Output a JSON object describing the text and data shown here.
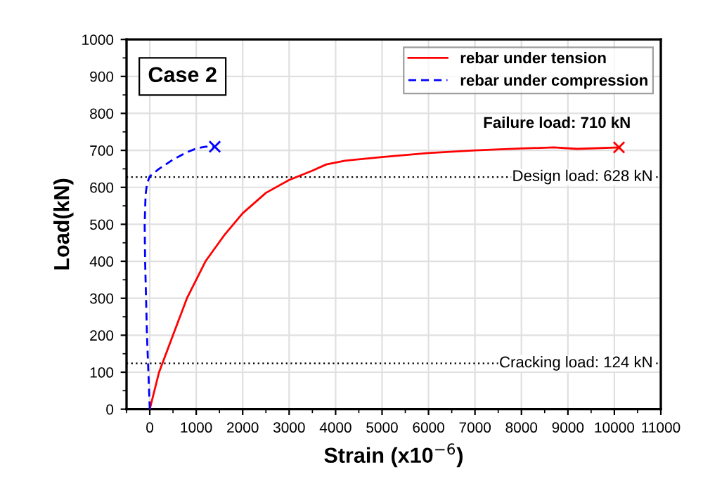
{
  "chart_data": {
    "type": "line",
    "xlabel": "Strain (x10$^{−6}$)",
    "ylabel": "Load(kN)",
    "xlim": [
      -500,
      11000
    ],
    "xticks": [
      0,
      1000,
      2000,
      3000,
      4000,
      5000,
      6000,
      7000,
      8000,
      9000,
      10000,
      11000
    ],
    "ylim": [
      0,
      1000
    ],
    "yticks": [
      0,
      100,
      200,
      300,
      400,
      500,
      600,
      700,
      800,
      900,
      1000
    ],
    "grid": true,
    "legend": "top right",
    "series": [
      {
        "name": "rebar under tension",
        "color": "#ff0000",
        "line_style": "solid",
        "marker": "none",
        "x": [
          0,
          200,
          500,
          800,
          1200,
          1600,
          2000,
          2500,
          3000,
          3500,
          3800,
          4200,
          5000,
          6000,
          7000,
          8000,
          8700,
          9200,
          10100
        ],
        "values": [
          0,
          100,
          200,
          300,
          400,
          470,
          530,
          585,
          620,
          645,
          662,
          672,
          682,
          693,
          700,
          705,
          708,
          704,
          708
        ]
      },
      {
        "name": "rebar under compression",
        "color": "#0000ff",
        "line_style": "dashed",
        "marker": "none",
        "x": [
          0,
          -30,
          -60,
          -80,
          -100,
          -110,
          -90,
          -60,
          0,
          200,
          500,
          800,
          1000,
          1200,
          1400
        ],
        "values": [
          0,
          100,
          200,
          300,
          400,
          500,
          580,
          610,
          630,
          650,
          675,
          695,
          705,
          710,
          710
        ]
      },
      {
        "type": "scatter",
        "color": "#ff0000",
        "marker": "cross",
        "x": [
          10100
        ],
        "values": [
          708
        ]
      },
      {
        "type": "scatter",
        "color": "#0000ff",
        "marker": "cross",
        "x": [
          1400
        ],
        "values": [
          710
        ]
      }
    ],
    "ref_lines": [
      {
        "axis": "y",
        "value": 628,
        "label": "Design load: 628 kN",
        "color": "#000000",
        "line_style": "dotted"
      },
      {
        "axis": "y",
        "value": 124,
        "label": "Cracking load: 124 kN",
        "color": "#000000",
        "line_style": "dotted"
      }
    ],
    "annotations": [
      "Case 2",
      {
        "text": "Failure load: 710 kN",
        "x": 10100,
        "y": 710
      }
    ]
  }
}
